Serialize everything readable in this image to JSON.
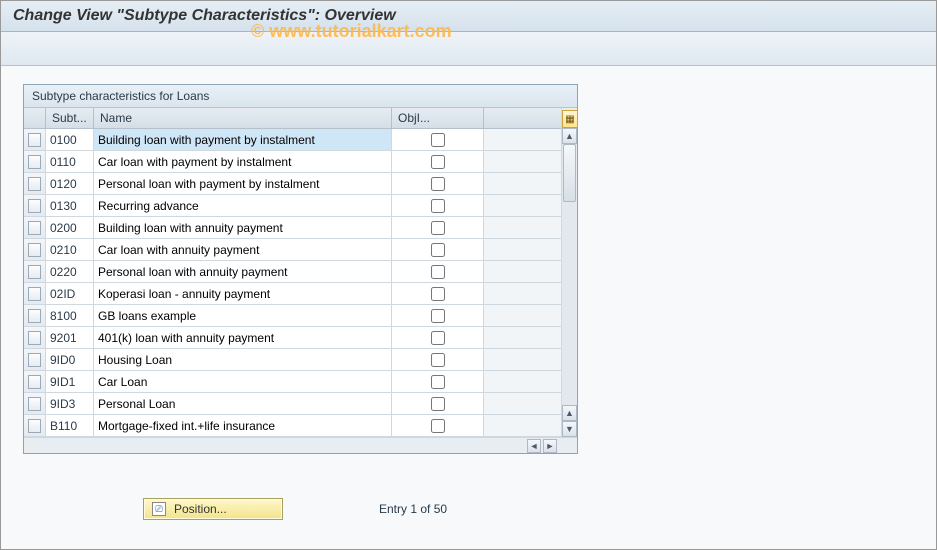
{
  "window": {
    "title": "Change View \"Subtype Characteristics\": Overview"
  },
  "watermark": "© www.tutorialkart.com",
  "panel": {
    "title": "Subtype characteristics for Loans",
    "columns": {
      "subt": "Subt...",
      "name": "Name",
      "obj": "ObjI..."
    },
    "rows": [
      {
        "subt": "0100",
        "name": "Building loan with payment by instalment",
        "obj": false,
        "selected": true
      },
      {
        "subt": "0110",
        "name": "Car loan with payment by instalment",
        "obj": false
      },
      {
        "subt": "0120",
        "name": "Personal loan with payment by instalment",
        "obj": false
      },
      {
        "subt": "0130",
        "name": "Recurring advance",
        "obj": false
      },
      {
        "subt": "0200",
        "name": "Building loan with annuity payment",
        "obj": false
      },
      {
        "subt": "0210",
        "name": "Car loan with annuity payment",
        "obj": false
      },
      {
        "subt": "0220",
        "name": "Personal loan with annuity payment",
        "obj": false
      },
      {
        "subt": "02ID",
        "name": "Koperasi loan - annuity payment",
        "obj": false
      },
      {
        "subt": "8100",
        "name": "GB loans example",
        "obj": false
      },
      {
        "subt": "9201",
        "name": "401(k) loan with annuity payment",
        "obj": false
      },
      {
        "subt": "9ID0",
        "name": "Housing Loan",
        "obj": false
      },
      {
        "subt": "9ID1",
        "name": "Car Loan",
        "obj": false
      },
      {
        "subt": "9ID3",
        "name": "Personal Loan",
        "obj": false
      },
      {
        "subt": "B110",
        "name": "Mortgage-fixed int.+life insurance",
        "obj": false
      }
    ]
  },
  "footer": {
    "position_button": "Position...",
    "entry_text": "Entry 1 of 50"
  },
  "colors": {
    "header_bg": "#e6eef5",
    "panel_border": "#8fa3b7",
    "row_border": "#cfd7df",
    "selected_bg": "#cfe6f7",
    "button_yellow": "#f2e38a"
  }
}
